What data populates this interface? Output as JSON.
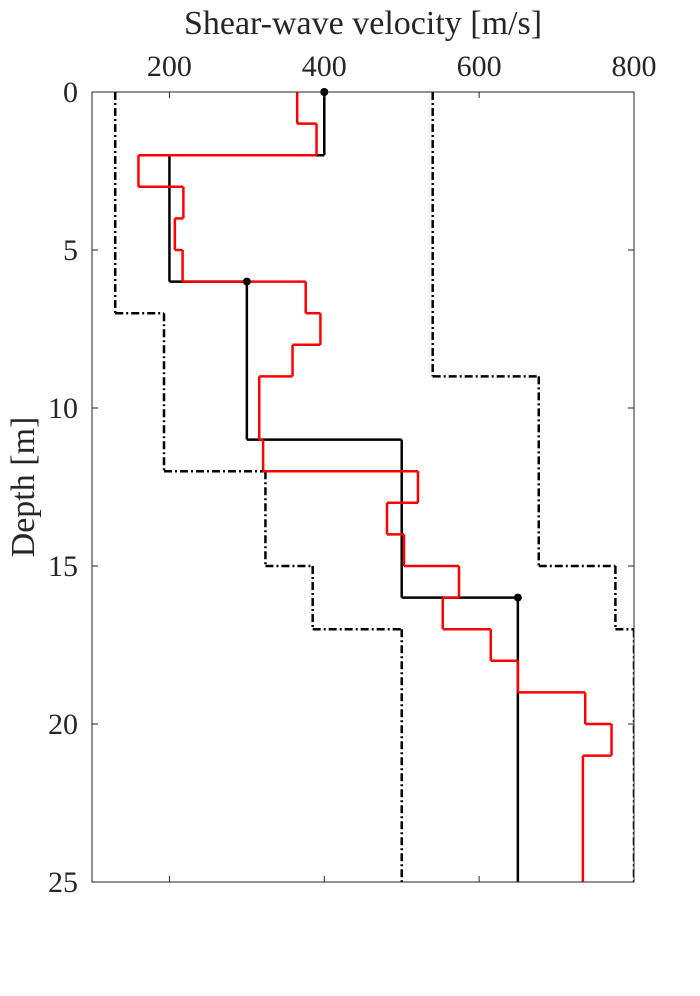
{
  "chart_data": {
    "type": "step-profile",
    "xlabel": "Shear-wave velocity [m/s]",
    "ylabel": "Depth [m]",
    "xlim": [
      100,
      800
    ],
    "xticks": [
      200,
      400,
      600,
      800
    ],
    "ylim": [
      0,
      25
    ],
    "yticks": [
      0,
      5,
      10,
      15,
      20,
      25
    ],
    "x_axis_position": "top",
    "y_inverted": true,
    "series": [
      {
        "color": "#000000",
        "dash": "dashdot",
        "depths": [
          0,
          7,
          12,
          15,
          17,
          25
        ],
        "values": [
          130,
          193,
          324,
          385,
          500
        ]
      },
      {
        "color": "#000000",
        "dash": "dashdot",
        "depths": [
          0,
          9,
          15,
          17,
          25
        ],
        "values": [
          540,
          677,
          776,
          800
        ]
      },
      {
        "color": "#000000",
        "dash": "solid",
        "depths": [
          0,
          2,
          6,
          11,
          16,
          25
        ],
        "values": [
          400,
          200,
          300,
          500,
          650
        ]
      },
      {
        "color": "#ff0000",
        "dash": "solid",
        "depths": [
          0,
          1,
          2,
          3,
          4,
          5,
          6,
          7,
          8,
          9,
          11,
          12,
          13,
          14,
          15,
          16,
          17,
          18,
          19,
          20,
          21,
          25
        ],
        "values": [
          365,
          390,
          160,
          218,
          207,
          217,
          376,
          395,
          359,
          316,
          321,
          521,
          481,
          503,
          574,
          553,
          615,
          650,
          737,
          771,
          734
        ]
      }
    ],
    "points": {
      "color": "#000000",
      "velocity": [
        400,
        300,
        650
      ],
      "depth": [
        0,
        6,
        16
      ]
    }
  }
}
